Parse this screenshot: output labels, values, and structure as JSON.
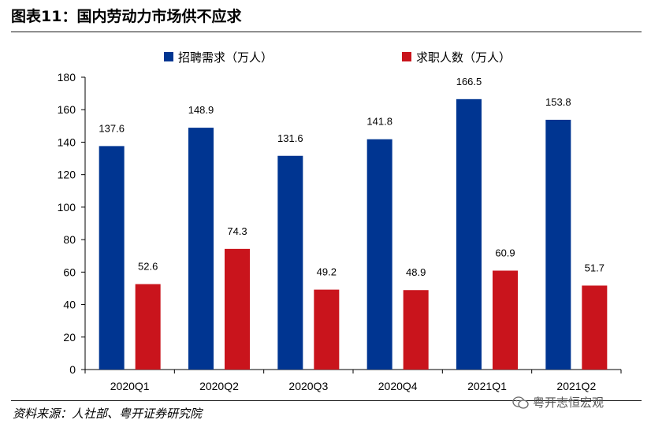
{
  "title": "图表11：国内劳动力市场供不应求",
  "source": "资料来源：人社部、粤开证券研究院",
  "watermark": "粤开志恒宏观",
  "colors": {
    "series1": "#003591",
    "series2": "#c9141c"
  },
  "chart_data": {
    "type": "bar",
    "title": "",
    "xlabel": "",
    "ylabel": "",
    "ylim": [
      0,
      180
    ],
    "yticks": [
      0,
      20,
      40,
      60,
      80,
      100,
      120,
      140,
      160,
      180
    ],
    "categories": [
      "2020Q1",
      "2020Q2",
      "2020Q3",
      "2020Q4",
      "2021Q1",
      "2021Q2"
    ],
    "series": [
      {
        "name": "招聘需求（万人）",
        "values": [
          137.6,
          148.9,
          131.6,
          141.8,
          166.5,
          153.8
        ],
        "labels": [
          "137.6",
          "148.9",
          "131.6",
          "141.8",
          "166.5",
          "153.8"
        ]
      },
      {
        "name": "求职人数（万人）",
        "values": [
          52.6,
          74.3,
          49.2,
          48.9,
          60.9,
          51.7
        ],
        "labels": [
          "52.6",
          "74.3",
          "49.2",
          "48.9",
          "60.9",
          "51.7"
        ]
      }
    ],
    "legend_position": "top"
  }
}
